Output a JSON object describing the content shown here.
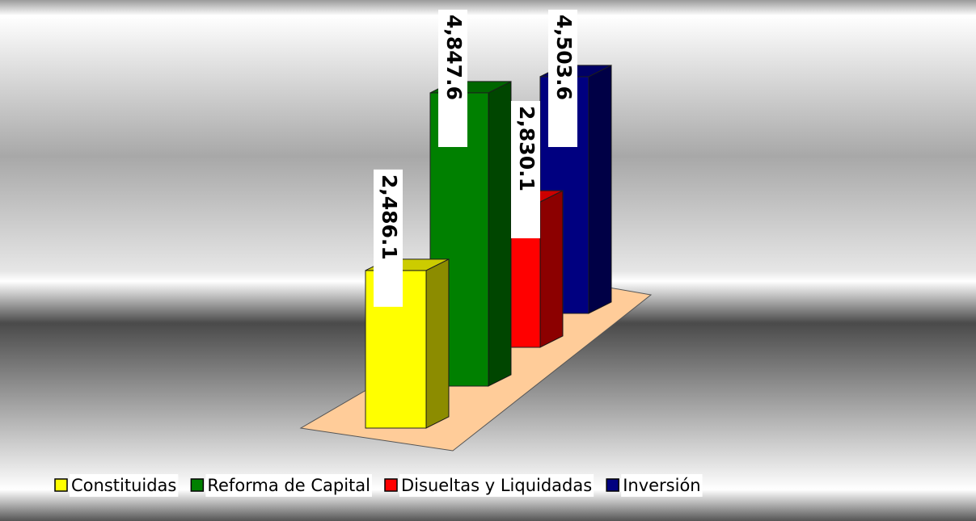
{
  "chart_data": {
    "type": "bar",
    "series": [
      {
        "name": "Constituidas",
        "color": "#ffff00",
        "values": [
          2486.1
        ],
        "value_labels": [
          "2,486.1"
        ]
      },
      {
        "name": "Reforma de Capital",
        "color": "#008000",
        "values": [
          4847.6
        ],
        "value_labels": [
          "4,847.6"
        ]
      },
      {
        "name": "Disueltas y Liquidadas",
        "color": "#ff0000",
        "values": [
          2830.1
        ],
        "value_labels": [
          "2,830.1"
        ]
      },
      {
        "name": "Inversión",
        "color": "#000080",
        "values": [
          4503.6
        ],
        "value_labels": [
          "4,503.6"
        ]
      }
    ],
    "legend": "bottom"
  }
}
